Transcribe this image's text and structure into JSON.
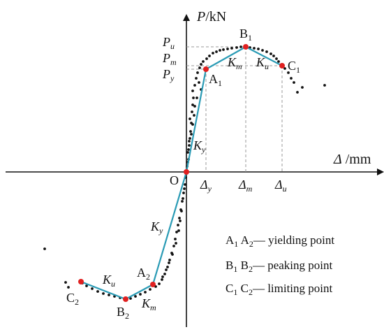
{
  "diagram": {
    "axes": {
      "y_label_var": "P",
      "y_label_unit": "/kN",
      "x_label_var": "Δ",
      "x_label_unit": " /mm",
      "origin": "O"
    },
    "points": {
      "A1": {
        "base": "A",
        "sub": "1"
      },
      "B1": {
        "base": "B",
        "sub": "1"
      },
      "C1": {
        "base": "C",
        "sub": "1"
      },
      "A2": {
        "base": "A",
        "sub": "2"
      },
      "B2": {
        "base": "B",
        "sub": "2"
      },
      "C2": {
        "base": "C",
        "sub": "2"
      }
    },
    "y_ticks": {
      "Pu": {
        "base": "P",
        "sub": "u"
      },
      "Pm": {
        "base": "P",
        "sub": "m"
      },
      "Py": {
        "base": "P",
        "sub": "y"
      }
    },
    "x_ticks": {
      "dy": {
        "base": "Δ",
        "sub": "y"
      },
      "dm": {
        "base": "Δ",
        "sub": "m"
      },
      "du": {
        "base": "Δ",
        "sub": "u"
      }
    },
    "stiffness": {
      "Ky_upper": {
        "base": "K",
        "sub": "y"
      },
      "Km_upper": {
        "base": "K",
        "sub": "m"
      },
      "Ku_upper": {
        "base": "K",
        "sub": "u"
      },
      "Ky_lower": {
        "base": "K",
        "sub": "y"
      },
      "Km_lower": {
        "base": "K",
        "sub": "m"
      },
      "Ku_lower": {
        "base": "K",
        "sub": "u"
      }
    },
    "legend": [
      {
        "p1": "A",
        "s1": "1",
        "p2": "A",
        "s2": "2",
        "text": "— yielding point"
      },
      {
        "p1": "B",
        "s1": "1",
        "p2": "B",
        "s2": "2",
        "text": "— peaking point"
      },
      {
        "p1": "C",
        "s1": "1",
        "p2": "C",
        "s2": "2",
        "text": "— limiting point"
      }
    ],
    "colors": {
      "curve": "#2a9bb5",
      "key_point": "#e02020",
      "scatter": "#111111",
      "guide": "#999999",
      "axis": "#111111"
    }
  }
}
